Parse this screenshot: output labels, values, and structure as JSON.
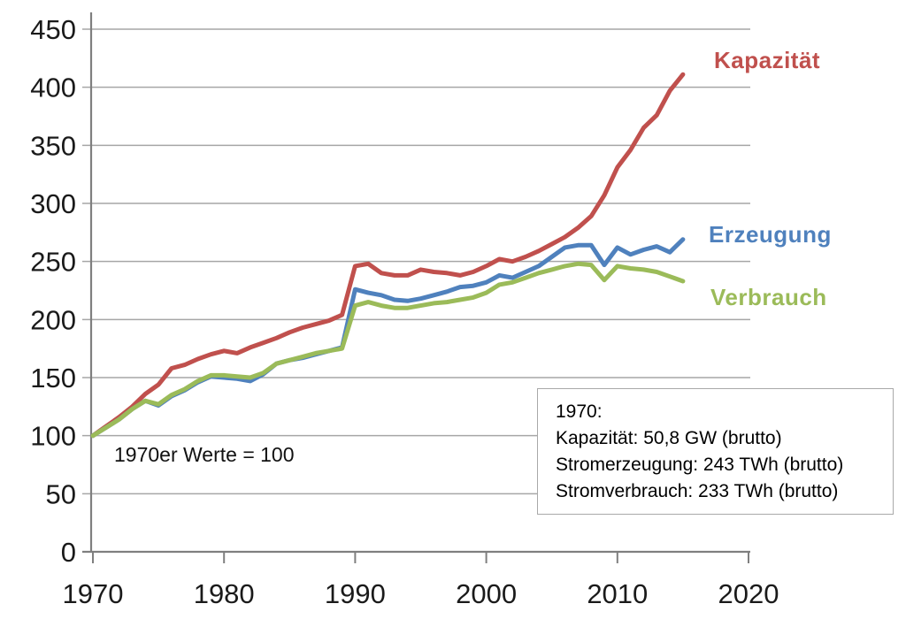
{
  "chart_data": {
    "type": "line",
    "title": "",
    "xlabel": "",
    "ylabel": "",
    "xlim": [
      1970,
      2020
    ],
    "ylim": [
      0,
      450
    ],
    "x_ticks": [
      1970,
      1980,
      1990,
      2000,
      2010,
      2020
    ],
    "y_ticks": [
      0,
      50,
      100,
      150,
      200,
      250,
      300,
      350,
      400,
      450
    ],
    "grid": "horizontal",
    "gridline_color": "#a6a6a6",
    "axis_color": "#7f7f7f",
    "tick_label_color": "#1a1a1a",
    "legend_position": "right-of-line-ends",
    "x": [
      1970,
      1971,
      1972,
      1973,
      1974,
      1975,
      1976,
      1977,
      1978,
      1979,
      1980,
      1981,
      1982,
      1983,
      1984,
      1985,
      1986,
      1987,
      1988,
      1989,
      1990,
      1991,
      1992,
      1993,
      1994,
      1995,
      1996,
      1997,
      1998,
      1999,
      2000,
      2001,
      2002,
      2003,
      2004,
      2005,
      2006,
      2007,
      2008,
      2009,
      2010,
      2011,
      2012,
      2013,
      2014,
      2015
    ],
    "series": [
      {
        "name": "Kapazität",
        "color": "#C0504D",
        "values": [
          100,
          108,
          116,
          125,
          136,
          144,
          158,
          161,
          166,
          170,
          173,
          171,
          176,
          180,
          184,
          189,
          193,
          196,
          199,
          204,
          246,
          248,
          240,
          238,
          238,
          243,
          241,
          240,
          238,
          241,
          246,
          252,
          250,
          254,
          259,
          265,
          271,
          279,
          289,
          307,
          331,
          346,
          365,
          376,
          397,
          411
        ]
      },
      {
        "name": "Erzeugung",
        "color": "#4F81BD",
        "values": [
          100,
          107,
          114,
          123,
          130,
          126,
          134,
          139,
          146,
          151,
          150,
          149,
          147,
          153,
          162,
          165,
          167,
          170,
          173,
          176,
          226,
          223,
          221,
          217,
          216,
          218,
          221,
          224,
          228,
          229,
          232,
          238,
          236,
          241,
          246,
          254,
          262,
          264,
          264,
          247,
          262,
          256,
          260,
          263,
          258,
          269
        ]
      },
      {
        "name": "Verbrauch",
        "color": "#9BBB59",
        "values": [
          100,
          107,
          114,
          123,
          130,
          127,
          135,
          140,
          147,
          152,
          152,
          151,
          150,
          154,
          162,
          165,
          168,
          171,
          173,
          175,
          212,
          215,
          212,
          210,
          210,
          212,
          214,
          215,
          217,
          219,
          223,
          230,
          232,
          236,
          240,
          243,
          246,
          248,
          247,
          234,
          246,
          244,
          243,
          241,
          237,
          233
        ]
      }
    ],
    "annotation": "1970er Werte = 100",
    "info_box": {
      "lines": [
        "1970:",
        "Kapazität: 50,8 GW (brutto)",
        "Stromerzeugung: 243 TWh (brutto)",
        "Stromverbrauch: 233 TWh (brutto)"
      ]
    }
  }
}
